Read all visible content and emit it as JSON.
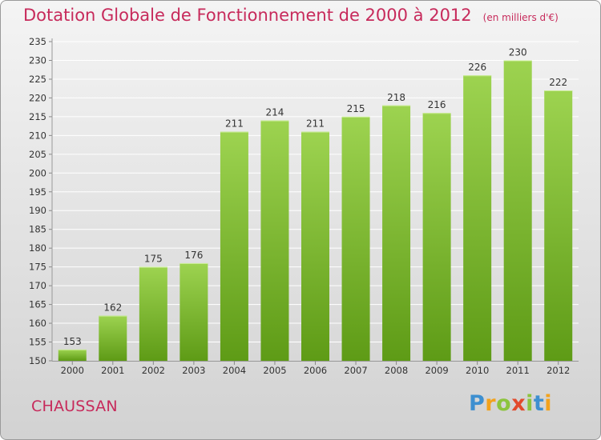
{
  "header": {
    "title": "Dotation Globale de Fonctionnement de 2000 à 2012",
    "unit_note": "(en milliers d'€)"
  },
  "footer": {
    "commune": "CHAUSSAN",
    "logo": "Proxiti"
  },
  "colors": {
    "title": "#c72a5b",
    "bar_light": "#9dd350",
    "bar_dark": "#5e9b16",
    "grid": "#ffffff"
  },
  "chart_data": {
    "type": "bar",
    "title": "Dotation Globale de Fonctionnement de 2000 à 2012",
    "subtitle": "(en milliers d'€)",
    "categories": [
      "2000",
      "2001",
      "2002",
      "2003",
      "2004",
      "2005",
      "2006",
      "2007",
      "2008",
      "2009",
      "2010",
      "2011",
      "2012"
    ],
    "values": [
      153,
      162,
      175,
      176,
      211,
      214,
      211,
      215,
      218,
      216,
      226,
      230,
      222
    ],
    "ylim": [
      150,
      235
    ],
    "yticks": [
      150,
      155,
      160,
      165,
      170,
      175,
      180,
      185,
      190,
      195,
      200,
      205,
      210,
      215,
      220,
      225,
      230,
      235
    ],
    "grid": true,
    "xlabel": "",
    "ylabel": ""
  }
}
